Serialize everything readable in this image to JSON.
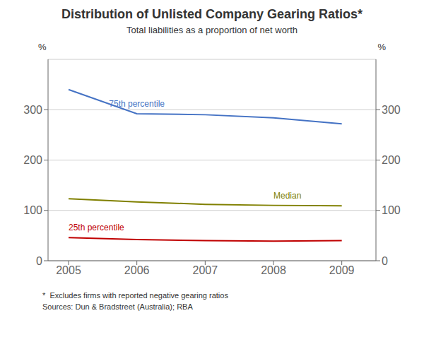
{
  "chart_data": {
    "type": "line",
    "title": "Distribution of Unlisted Company Gearing Ratios*",
    "subtitle": "Total liabilities as a proportion of net worth",
    "footnotes": [
      "*  Excludes firms with reported negative gearing ratios",
      "Sources: Dun & Bradstreet (Australia); RBA"
    ],
    "ylabel": "%",
    "y2label": "%",
    "x": [
      2005,
      2006,
      2007,
      2008,
      2009
    ],
    "series": [
      {
        "name": "75th percentile",
        "color": "#4472C4",
        "values": [
          340,
          292,
          290,
          284,
          272
        ]
      },
      {
        "name": "Median",
        "color": "#808000",
        "values": [
          123,
          117,
          112,
          110,
          109
        ]
      },
      {
        "name": "25th percentile",
        "color": "#C00000",
        "values": [
          46,
          42,
          40,
          39,
          40
        ]
      }
    ],
    "xlim": [
      2004.7,
      2009.5
    ],
    "xticks": [
      2005,
      2006,
      2007,
      2008,
      2009
    ],
    "ylim": [
      0,
      400
    ],
    "yticks": [
      0,
      100,
      200,
      300
    ],
    "y2lim": [
      0,
      400
    ],
    "y2ticks": [
      0,
      100,
      200,
      300
    ],
    "grid": true
  }
}
